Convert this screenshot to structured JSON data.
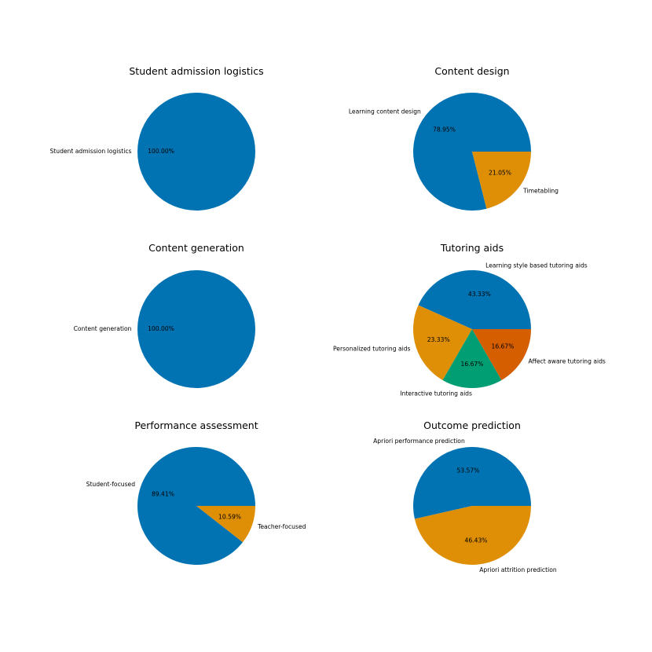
{
  "chart_data": [
    {
      "type": "pie",
      "title": "Student admission logistics",
      "labels": [
        "Student admission logistics"
      ],
      "values": [
        100.0
      ],
      "percent_labels": [
        "100.00%"
      ],
      "colors": [
        "#0173b2"
      ]
    },
    {
      "type": "pie",
      "title": "Content design",
      "labels": [
        "Learning content design",
        "Timetabling"
      ],
      "values": [
        78.95,
        21.05
      ],
      "percent_labels": [
        "78.95%",
        "21.05%"
      ],
      "colors": [
        "#0173b2",
        "#de8f05"
      ]
    },
    {
      "type": "pie",
      "title": "Content generation",
      "labels": [
        "Content generation"
      ],
      "values": [
        100.0
      ],
      "percent_labels": [
        "100.00%"
      ],
      "colors": [
        "#0173b2"
      ]
    },
    {
      "type": "pie",
      "title": "Tutoring aids",
      "labels": [
        "Learning style based tutoring aids",
        "Personalized tutoring aids",
        "Interactive tutoring aids",
        "Affect aware tutoring aids"
      ],
      "values": [
        43.33,
        23.33,
        16.67,
        16.67
      ],
      "percent_labels": [
        "43.33%",
        "23.33%",
        "16.67%",
        "16.67%"
      ],
      "colors": [
        "#0173b2",
        "#de8f05",
        "#029e73",
        "#d55e00"
      ]
    },
    {
      "type": "pie",
      "title": "Performance assessment",
      "labels": [
        "Student-focused",
        "Teacher-focused"
      ],
      "values": [
        89.41,
        10.59
      ],
      "percent_labels": [
        "89.41%",
        "10.59%"
      ],
      "colors": [
        "#0173b2",
        "#de8f05"
      ]
    },
    {
      "type": "pie",
      "title": "Outcome prediction",
      "labels": [
        "Apriori performance prediction",
        "Apriori attrition prediction"
      ],
      "values": [
        53.57,
        46.43
      ],
      "percent_labels": [
        "53.57%",
        "46.43%"
      ],
      "colors": [
        "#0173b2",
        "#de8f05"
      ]
    }
  ]
}
